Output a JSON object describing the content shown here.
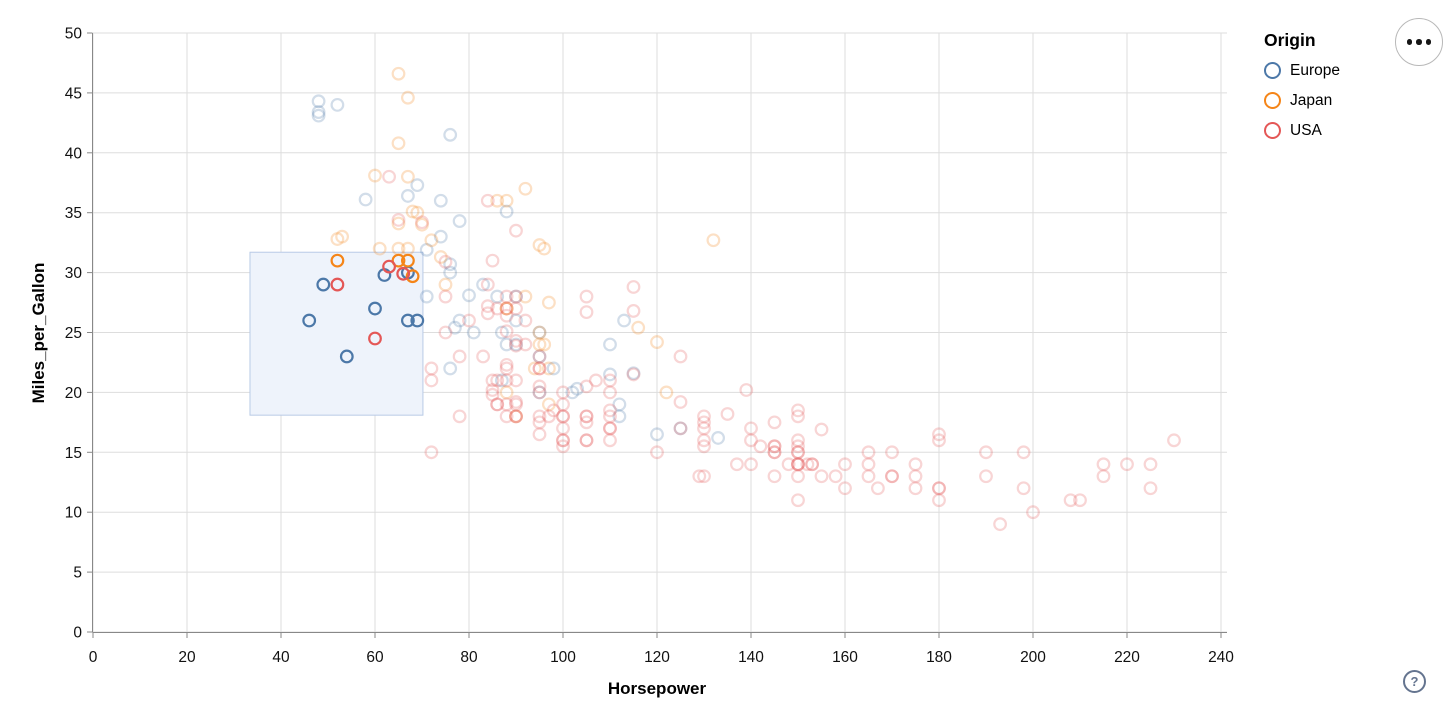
{
  "chart_data": {
    "type": "scatter",
    "title": "",
    "xlabel": "Horsepower",
    "ylabel": "Miles_per_Gallon",
    "xlim": [
      0,
      240
    ],
    "ylim": [
      0,
      50
    ],
    "x_ticks": [
      0,
      20,
      40,
      60,
      80,
      100,
      120,
      140,
      160,
      180,
      200,
      220,
      240
    ],
    "y_ticks": [
      0,
      5,
      10,
      15,
      20,
      25,
      30,
      35,
      40,
      45,
      50
    ],
    "grid": true,
    "point_style": {
      "shape": "open-circle",
      "radius": 5.8,
      "stroke_width": 2.2,
      "unselected_opacity": 0.25
    },
    "brush_selection": {
      "x_range": [
        33.4,
        70.2
      ],
      "y_range": [
        18.1,
        31.7
      ],
      "fill": "#eef3fb",
      "stroke": "#b9cae6"
    },
    "legend": {
      "title": "Origin",
      "position": "top-right",
      "entries": [
        {
          "label": "Europe",
          "color": "#4c78a8"
        },
        {
          "label": "Japan",
          "color": "#f58518"
        },
        {
          "label": "USA",
          "color": "#e45756"
        }
      ]
    },
    "series": [
      {
        "name": "Europe",
        "color": "#4c78a8",
        "selected_points": [
          [
            49,
            29
          ],
          [
            60,
            27
          ],
          [
            46,
            26
          ],
          [
            67,
            26
          ],
          [
            69,
            26
          ],
          [
            54,
            23
          ],
          [
            67,
            30
          ],
          [
            62,
            29.8
          ]
        ],
        "points": [
          [
            87,
            25
          ],
          [
            90,
            24
          ],
          [
            95,
            25
          ],
          [
            113,
            26
          ],
          [
            90,
            28
          ],
          [
            76,
            30
          ],
          [
            112,
            18
          ],
          [
            76,
            22
          ],
          [
            87,
            21
          ],
          [
            90,
            26
          ],
          [
            88,
            24
          ],
          [
            95,
            20
          ],
          [
            112,
            19
          ],
          [
            110,
            24
          ],
          [
            83,
            29
          ],
          [
            78,
            26
          ],
          [
            98,
            22
          ],
          [
            95,
            23
          ],
          [
            81,
            25
          ],
          [
            86,
            28
          ],
          [
            125,
            17
          ],
          [
            102,
            20
          ],
          [
            77,
            25.4
          ],
          [
            110,
            21.5
          ],
          [
            76,
            30.7
          ],
          [
            48,
            43.4
          ],
          [
            48,
            43.1
          ],
          [
            48,
            44.3
          ],
          [
            52,
            44
          ],
          [
            71,
            31.9
          ],
          [
            133,
            16.2
          ],
          [
            80,
            28.1
          ],
          [
            69,
            37.3
          ],
          [
            58,
            36.1
          ],
          [
            103,
            20.3
          ],
          [
            115,
            21.6
          ],
          [
            78,
            34.3
          ],
          [
            67,
            36.4
          ],
          [
            76,
            41.5
          ],
          [
            88,
            35.1
          ],
          [
            74,
            33
          ],
          [
            74,
            36
          ],
          [
            71,
            28
          ],
          [
            120,
            16.5
          ]
        ]
      },
      {
        "name": "Japan",
        "color": "#f58518",
        "selected_points": [
          [
            52,
            31
          ],
          [
            65,
            31
          ],
          [
            67,
            31
          ],
          [
            68,
            29.7
          ]
        ],
        "points": [
          [
            95,
            24
          ],
          [
            88,
            27
          ],
          [
            88,
            27
          ],
          [
            95,
            25
          ],
          [
            69,
            35
          ],
          [
            97,
            19
          ],
          [
            92,
            28
          ],
          [
            88,
            20
          ],
          [
            94,
            22
          ],
          [
            90,
            18
          ],
          [
            122,
            20
          ],
          [
            61,
            32
          ],
          [
            65,
            32
          ],
          [
            53,
            33
          ],
          [
            96,
            24
          ],
          [
            75,
            29
          ],
          [
            97,
            22
          ],
          [
            132,
            32.7
          ],
          [
            72,
            32.7
          ],
          [
            60,
            38.1
          ],
          [
            65,
            40.8
          ],
          [
            65,
            46.6
          ],
          [
            67,
            44.6
          ],
          [
            92,
            37
          ],
          [
            52,
            32.8
          ],
          [
            88,
            36
          ],
          [
            86,
            36
          ],
          [
            70,
            34
          ],
          [
            67,
            38
          ],
          [
            67,
            32
          ],
          [
            96,
            32
          ],
          [
            74,
            31.3
          ],
          [
            120,
            24.2
          ],
          [
            116,
            25.4
          ],
          [
            65,
            34.1
          ],
          [
            68,
            35.1
          ],
          [
            95,
            32.3
          ],
          [
            97,
            27.5
          ]
        ]
      },
      {
        "name": "USA",
        "color": "#e45756",
        "selected_points": [
          [
            52,
            29
          ],
          [
            63,
            30.5
          ],
          [
            66,
            29.9
          ],
          [
            60,
            24.5
          ]
        ],
        "points": [
          [
            130,
            18
          ],
          [
            165,
            15
          ],
          [
            150,
            18
          ],
          [
            150,
            16
          ],
          [
            140,
            17
          ],
          [
            198,
            15
          ],
          [
            220,
            14
          ],
          [
            215,
            14
          ],
          [
            225,
            14
          ],
          [
            190,
            15
          ],
          [
            170,
            15
          ],
          [
            160,
            14
          ],
          [
            150,
            15
          ],
          [
            95,
            22
          ],
          [
            97,
            18
          ],
          [
            85,
            21
          ],
          [
            88,
            21
          ],
          [
            90,
            21
          ],
          [
            105,
            16
          ],
          [
            100,
            17
          ],
          [
            88,
            19
          ],
          [
            100,
            18
          ],
          [
            165,
            14
          ],
          [
            175,
            14
          ],
          [
            153,
            14
          ],
          [
            150,
            14
          ],
          [
            180,
            12
          ],
          [
            170,
            13
          ],
          [
            175,
            12
          ],
          [
            110,
            18
          ],
          [
            72,
            22
          ],
          [
            86,
            19
          ],
          [
            90,
            18
          ],
          [
            193,
            9
          ],
          [
            86,
            21
          ],
          [
            165,
            13
          ],
          [
            150,
            15
          ],
          [
            153,
            14
          ],
          [
            208,
            11
          ],
          [
            155,
            13
          ],
          [
            160,
            12
          ],
          [
            190,
            13
          ],
          [
            150,
            13
          ],
          [
            140,
            14
          ],
          [
            145,
            13
          ],
          [
            150,
            14
          ],
          [
            137,
            14
          ],
          [
            198,
            12
          ],
          [
            158,
            13
          ],
          [
            215,
            13
          ],
          [
            225,
            12
          ],
          [
            175,
            13
          ],
          [
            105,
            18
          ],
          [
            100,
            16
          ],
          [
            100,
            18
          ],
          [
            88,
            18
          ],
          [
            95,
            23
          ],
          [
            150,
            11
          ],
          [
            167,
            12
          ],
          [
            170,
            13
          ],
          [
            180,
            12
          ],
          [
            90,
            18
          ],
          [
            72,
            21
          ],
          [
            86,
            19
          ],
          [
            107,
            21
          ],
          [
            145,
            15
          ],
          [
            230,
            16
          ],
          [
            180,
            11
          ],
          [
            95,
            20
          ],
          [
            80,
            26
          ],
          [
            75,
            25
          ],
          [
            100,
            16
          ],
          [
            110,
            16
          ],
          [
            105,
            18
          ],
          [
            140,
            16
          ],
          [
            150,
            14
          ],
          [
            75,
            28
          ],
          [
            95,
            22
          ],
          [
            72,
            15
          ],
          [
            148,
            14
          ],
          [
            110,
            17
          ],
          [
            105,
            16
          ],
          [
            95,
            18
          ],
          [
            110,
            21
          ],
          [
            110,
            20
          ],
          [
            129,
            13
          ],
          [
            83,
            23
          ],
          [
            90,
            19
          ],
          [
            78,
            23
          ],
          [
            145,
            15
          ],
          [
            152,
            14
          ],
          [
            120,
            15
          ],
          [
            100,
            20
          ],
          [
            78,
            18
          ],
          [
            110,
            18.5
          ],
          [
            95,
            17.5
          ],
          [
            180,
            16.5
          ],
          [
            130,
            13
          ],
          [
            100,
            19
          ],
          [
            145,
            17.5
          ],
          [
            110,
            17
          ],
          [
            145,
            15.5
          ],
          [
            130,
            15.5
          ],
          [
            105,
            17.5
          ],
          [
            105,
            20.5
          ],
          [
            180,
            16
          ],
          [
            145,
            15.5
          ],
          [
            150,
            15.5
          ],
          [
            130,
            16
          ],
          [
            85,
            20.2
          ],
          [
            95,
            20.5
          ],
          [
            88,
            25.1
          ],
          [
            90,
            19.2
          ],
          [
            125,
            19.2
          ],
          [
            75,
            30.9
          ],
          [
            98,
            18.5
          ],
          [
            139,
            20.2
          ],
          [
            115,
            21.5
          ],
          [
            130,
            17.5
          ],
          [
            155,
            16.9
          ],
          [
            142,
            15.5
          ],
          [
            125,
            17
          ],
          [
            150,
            18.5
          ],
          [
            135,
            18.2
          ],
          [
            85,
            19.8
          ],
          [
            88,
            22.3
          ],
          [
            125,
            23
          ],
          [
            90,
            23.9
          ],
          [
            130,
            17
          ],
          [
            90,
            28
          ],
          [
            88,
            26.4
          ],
          [
            90,
            24.3
          ],
          [
            90,
            33.5
          ],
          [
            115,
            26.8
          ],
          [
            84,
            27.2
          ],
          [
            84,
            26.6
          ],
          [
            70,
            34.2
          ],
          [
            65,
            34.4
          ],
          [
            88,
            28
          ],
          [
            88,
            27
          ],
          [
            85,
            31
          ],
          [
            84,
            29
          ],
          [
            90,
            27
          ],
          [
            92,
            24
          ],
          [
            86,
            27
          ],
          [
            92,
            26
          ],
          [
            88,
            22
          ],
          [
            84,
            36
          ],
          [
            63,
            38
          ],
          [
            200,
            10
          ],
          [
            210,
            11
          ],
          [
            95,
            16.5
          ],
          [
            100,
            15.5
          ],
          [
            115,
            28.8
          ],
          [
            105,
            28
          ],
          [
            105,
            26.7
          ]
        ]
      }
    ]
  },
  "controls": {
    "menu_icon": "ellipsis-icon",
    "help_label": "?"
  }
}
